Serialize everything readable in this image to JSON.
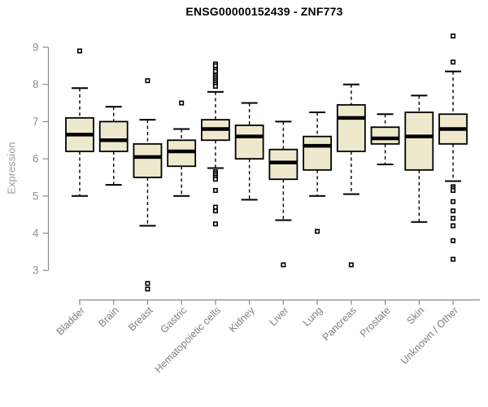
{
  "chart_data": {
    "type": "boxplot",
    "title": "ENSG00000152439 - ZNF773",
    "ylabel": "Expression",
    "xlabel": "",
    "ylim": [
      2.35,
      9.65
    ],
    "yticks": [
      3,
      4,
      5,
      6,
      7,
      8,
      9
    ],
    "grid": false,
    "legend_position": "none",
    "x_label_rotation": 45,
    "colors": {
      "box_fill": "#EEE8CD",
      "box_border": "#000000",
      "median": "#000000",
      "whisker": "#000000",
      "axis": "#898989",
      "tick_label": "#8f8f8f",
      "title": "#000000"
    },
    "categories": [
      "Bladder",
      "Brain",
      "Breast",
      "Gastric",
      "Hematopoietic cells",
      "Kidney",
      "Liver",
      "Lung",
      "Pancreas",
      "Prostate",
      "Skin",
      "Unknown / Other"
    ],
    "series": [
      {
        "name": "Bladder",
        "whisker_low": 5.0,
        "q1": 6.2,
        "median": 6.65,
        "q3": 7.1,
        "whisker_high": 7.9,
        "outliers": [
          8.9
        ]
      },
      {
        "name": "Brain",
        "whisker_low": 5.3,
        "q1": 6.2,
        "median": 6.5,
        "q3": 7.0,
        "whisker_high": 7.4,
        "outliers": []
      },
      {
        "name": "Breast",
        "whisker_low": 4.2,
        "q1": 5.5,
        "median": 6.05,
        "q3": 6.4,
        "whisker_high": 7.05,
        "outliers": [
          8.1,
          2.65,
          2.5
        ]
      },
      {
        "name": "Gastric",
        "whisker_low": 5.0,
        "q1": 5.8,
        "median": 6.2,
        "q3": 6.5,
        "whisker_high": 6.8,
        "outliers": [
          7.5
        ]
      },
      {
        "name": "Hematopoietic cells",
        "whisker_low": 5.75,
        "q1": 6.5,
        "median": 6.8,
        "q3": 7.05,
        "whisker_high": 7.8,
        "outliers": [
          8.55,
          8.5,
          8.4,
          8.35,
          8.25,
          8.2,
          8.15,
          8.1,
          8.05,
          8.0,
          7.95,
          5.65,
          5.6,
          5.55,
          5.5,
          5.45,
          5.15,
          4.7,
          4.6,
          4.25
        ]
      },
      {
        "name": "Kidney",
        "whisker_low": 4.9,
        "q1": 6.0,
        "median": 6.6,
        "q3": 6.9,
        "whisker_high": 7.5,
        "outliers": []
      },
      {
        "name": "Liver",
        "whisker_low": 4.35,
        "q1": 5.45,
        "median": 5.9,
        "q3": 6.25,
        "whisker_high": 7.0,
        "outliers": [
          3.15
        ]
      },
      {
        "name": "Lung",
        "whisker_low": 5.0,
        "q1": 5.7,
        "median": 6.35,
        "q3": 6.6,
        "whisker_high": 7.25,
        "outliers": [
          4.05
        ]
      },
      {
        "name": "Pancreas",
        "whisker_low": 5.05,
        "q1": 6.2,
        "median": 7.1,
        "q3": 7.45,
        "whisker_high": 8.0,
        "outliers": [
          3.15
        ]
      },
      {
        "name": "Prostate",
        "whisker_low": 5.85,
        "q1": 6.4,
        "median": 6.55,
        "q3": 6.85,
        "whisker_high": 7.2,
        "outliers": []
      },
      {
        "name": "Skin",
        "whisker_low": 4.3,
        "q1": 5.7,
        "median": 6.6,
        "q3": 7.25,
        "whisker_high": 7.7,
        "outliers": []
      },
      {
        "name": "Unknown / Other",
        "whisker_low": 5.4,
        "q1": 6.4,
        "median": 6.8,
        "q3": 7.2,
        "whisker_high": 8.35,
        "outliers": [
          9.3,
          8.6,
          5.25,
          5.2,
          5.15,
          4.85,
          4.6,
          4.4,
          4.2,
          3.8,
          3.3
        ]
      }
    ]
  }
}
